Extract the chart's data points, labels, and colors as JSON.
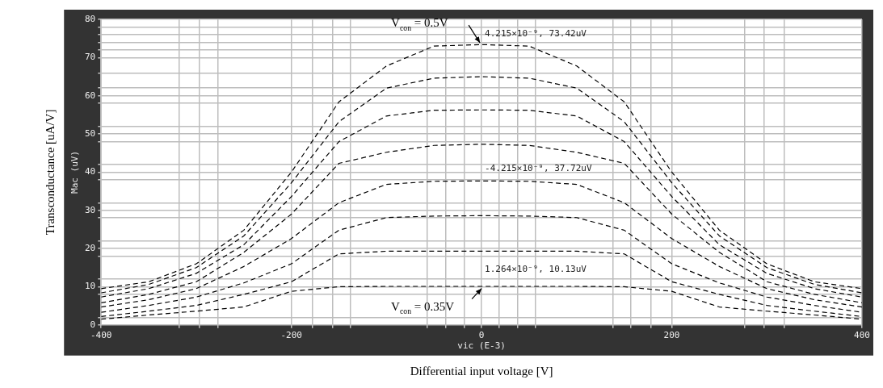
{
  "chart_data": {
    "type": "line",
    "xlabel": "Differential input voltage [V]",
    "ylabel": "Transconductance [uA/V]",
    "x": [
      -400,
      -350,
      -300,
      -250,
      -200,
      -150,
      -100,
      -50,
      0,
      50,
      100,
      150,
      200,
      250,
      300,
      350,
      400
    ],
    "series": [
      {
        "color": "#000000",
        "values": [
          9.5,
          11.3,
          16,
          24.8,
          40,
          58.4,
          67.8,
          73,
          73.4,
          73,
          67.8,
          58.4,
          40,
          24.8,
          16,
          11.3,
          9.5
        ]
      },
      {
        "color": "#000000",
        "values": [
          8.4,
          10.6,
          15,
          23.3,
          37.2,
          53.2,
          62,
          64.6,
          65,
          64.6,
          62,
          53.2,
          37.2,
          23.3,
          15,
          10.6,
          8.4
        ]
      },
      {
        "color": "#000000",
        "values": [
          7.3,
          9.5,
          13.5,
          21,
          33.6,
          48,
          54.7,
          56.2,
          56.3,
          56.2,
          54.7,
          48,
          33.6,
          21,
          13.5,
          9.5,
          7.3
        ]
      },
      {
        "color": "#000000",
        "values": [
          5.8,
          8,
          11.3,
          19,
          29,
          42.3,
          45.2,
          47,
          47.3,
          47,
          45.2,
          42.3,
          29,
          19,
          11.3,
          8,
          5.8
        ]
      },
      {
        "color": "#000000",
        "values": [
          4.7,
          6.6,
          9.5,
          15.3,
          22.6,
          32,
          36.8,
          37.6,
          37.7,
          37.6,
          36.8,
          32,
          22.6,
          15.3,
          9.5,
          6.6,
          4.7
        ]
      },
      {
        "color": "#000000",
        "values": [
          3.3,
          5.1,
          7.3,
          11,
          16,
          24.8,
          28.1,
          28.5,
          28.6,
          28.5,
          28.1,
          24.8,
          16,
          11,
          7.3,
          5.1,
          3.3
        ]
      },
      {
        "color": "#000000",
        "values": [
          2.2,
          3.6,
          5.1,
          8,
          11.3,
          18.6,
          19.3,
          19.3,
          19.3,
          19.3,
          19.3,
          18.6,
          11.3,
          8,
          5.1,
          3.6,
          2.2
        ]
      },
      {
        "color": "#000000",
        "values": [
          1.5,
          2.6,
          3.6,
          4.7,
          8.8,
          10,
          10.1,
          10.1,
          10.1,
          10.1,
          10.1,
          10,
          8.8,
          4.7,
          3.6,
          2.6,
          1.5
        ]
      }
    ],
    "xlim": [
      -400,
      400
    ],
    "xticks": [
      -400,
      {
        "value": -318,
        "label": null
      },
      {
        "value": -297,
        "label": null
      },
      {
        "value": -277,
        "label": null
      },
      -200,
      {
        "value": -178,
        "label": null
      },
      {
        "value": -157,
        "label": null
      },
      {
        "value": -138,
        "label": null
      },
      {
        "value": -57,
        "label": null
      },
      {
        "value": -38,
        "label": null
      },
      {
        "value": -18,
        "label": null
      },
      0,
      {
        "value": 18,
        "label": null
      },
      {
        "value": 38,
        "label": null
      },
      {
        "value": 57,
        "label": null
      },
      {
        "value": 138,
        "label": null
      },
      {
        "value": 157,
        "label": null
      },
      {
        "value": 178,
        "label": null
      },
      200,
      {
        "value": 277,
        "label": null
      },
      {
        "value": 297,
        "label": null
      },
      {
        "value": 318,
        "label": null
      },
      400
    ],
    "ylim": [
      0,
      80
    ],
    "yticks": [
      0,
      {
        "value": 2,
        "label": null
      },
      {
        "value": 8,
        "label": null
      },
      10,
      {
        "value": 12,
        "label": null
      },
      {
        "value": 18,
        "label": null
      },
      20,
      {
        "value": 22,
        "label": null
      },
      {
        "value": 28,
        "label": null
      },
      30,
      {
        "value": 32,
        "label": null
      },
      {
        "value": 38,
        "label": null
      },
      40,
      {
        "value": 42,
        "label": null
      },
      {
        "value": 48,
        "label": null
      },
      50,
      {
        "value": 52,
        "label": null
      },
      {
        "value": 58,
        "label": null
      },
      60,
      {
        "value": 62,
        "label": null
      },
      {
        "value": 66,
        "label": null
      },
      70,
      {
        "value": 72,
        "label": null
      },
      {
        "value": 74,
        "label": null
      },
      {
        "value": 76,
        "label": null
      },
      {
        "value": 78,
        "label": null
      },
      80
    ],
    "grid": true,
    "legend": false,
    "marker": "none",
    "line_style": "dashed",
    "annotations": [
      "V$_{con}$ = 0.5V",
      "4.215×10⁻⁹, 73.42uV",
      "-4.215×10⁻⁹, 37.72uV",
      "1.264×10⁻⁹, 10.13uV",
      "V$_{con}$ = 0.35V",
      "Mac (uV)",
      "vic (E-3)"
    ]
  }
}
